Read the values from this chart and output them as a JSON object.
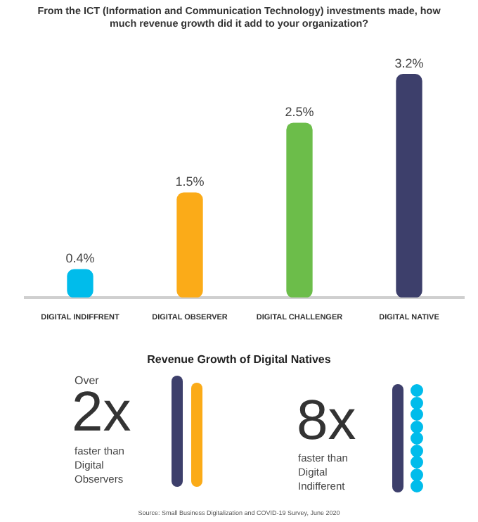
{
  "chart_data": {
    "type": "bar",
    "title": "From the ICT (Information and Communication Technology) investments made, how much revenue growth did it add to your organization?",
    "categories": [
      "DIGITAL INDIFFRENT",
      "DIGITAL OBSERVER",
      "DIGITAL CHALLENGER",
      "DIGITAL NATIVE"
    ],
    "values": [
      0.4,
      1.5,
      2.5,
      3.2
    ],
    "value_labels": [
      "0.4%",
      "1.5%",
      "2.5%",
      "3.2%"
    ],
    "colors": [
      "#00bceb",
      "#fbab18",
      "#6cbd4a",
      "#3d3f6b"
    ],
    "tick_labels": "x",
    "annotations": [
      "Revenue Growth of Digital Natives",
      "Over",
      "2x",
      "faster than Digital Observers",
      "8x",
      "faster than Digital Indifferent",
      "Source: Small Business Digitalization and COVID-19 Survey, June 2020"
    ]
  }
}
